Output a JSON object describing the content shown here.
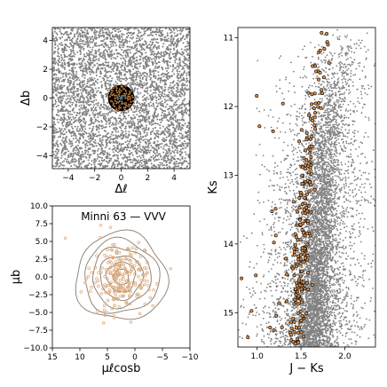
{
  "chart_data": [
    {
      "panel": "spatial",
      "type": "scatter",
      "xlabel": "Δℓ",
      "ylabel": "Δb",
      "xlim": [
        -5.2,
        5.2
      ],
      "ylim": [
        -4.9,
        4.9
      ],
      "xticks": [
        -4,
        -2,
        0,
        2,
        4
      ],
      "yticks": [
        -4,
        -2,
        0,
        2,
        4
      ],
      "xtick_labels": [
        "−4",
        "−2",
        "0",
        "2",
        "4"
      ],
      "ytick_labels": [
        "−4",
        "−2",
        "0",
        "2",
        "4"
      ],
      "series": [
        {
          "role": "field",
          "color": "#808080",
          "distribution": "uniform"
        },
        {
          "role": "cluster_members",
          "color": "#d98d4a",
          "edge": "#000000",
          "center": [
            0.0,
            0.0
          ],
          "radius": 1.0
        },
        {
          "role": "center_marker",
          "color": "#1f77b4",
          "x": [
            0.0
          ],
          "y": [
            0.0
          ]
        }
      ]
    },
    {
      "panel": "proper_motion",
      "type": "scatter",
      "title": "Minni 63 — VVV",
      "xlabel": "μℓcosb",
      "ylabel": "μb",
      "xlim": [
        15,
        -10
      ],
      "ylim": [
        -10,
        10
      ],
      "xticks": [
        15,
        10,
        5,
        0,
        -5,
        -10
      ],
      "yticks": [
        -10,
        -7.5,
        -5,
        -2.5,
        0,
        2.5,
        5,
        7.5,
        10
      ],
      "xtick_labels": [
        "15",
        "10",
        "5",
        "0",
        "−5",
        "−10"
      ],
      "ytick_labels": [
        "−10.0",
        "−7.5",
        "−5.0",
        "−2.5",
        "0.0",
        "2.5",
        "5.0",
        "7.5",
        "10.0"
      ],
      "contours": {
        "color": "#8b7a6a",
        "center": [
          2.5,
          0.0
        ],
        "ellipses": [
          {
            "rx": 8.3,
            "ry": 6.2
          },
          {
            "rx": 6.8,
            "ry": 5.2
          },
          {
            "rx": 5.3,
            "ry": 4.2
          },
          {
            "rx": 3.9,
            "ry": 3.1
          },
          {
            "rx": 2.6,
            "ry": 2.1
          },
          {
            "rx": 1.4,
            "ry": 1.1
          }
        ]
      },
      "series": [
        {
          "role": "members",
          "color": "#d9a77a",
          "center": [
            2.5,
            0.0
          ],
          "spread": [
            2.8,
            2.5
          ]
        }
      ]
    },
    {
      "panel": "cmd",
      "type": "scatter",
      "xlabel": "J − Ks",
      "ylabel": "Ks",
      "xlim": [
        0.78,
        2.35
      ],
      "ylim": [
        15.5,
        10.85
      ],
      "xticks": [
        1.0,
        1.5,
        2.0
      ],
      "yticks": [
        11,
        12,
        13,
        14,
        15
      ],
      "xtick_labels": [
        "1.0",
        "1.5",
        "2.0"
      ],
      "ytick_labels": [
        "11",
        "12",
        "13",
        "14",
        "15"
      ],
      "series": [
        {
          "role": "field",
          "color": "#808080"
        },
        {
          "role": "cluster_members",
          "color": "#d98d4a",
          "edge": "#000000"
        }
      ],
      "sequence_ridge": [
        {
          "ks": 10.9,
          "color": 1.83
        },
        {
          "ks": 11.5,
          "color": 1.74
        },
        {
          "ks": 12.0,
          "color": 1.67
        },
        {
          "ks": 12.5,
          "color": 1.62
        },
        {
          "ks": 13.0,
          "color": 1.58
        },
        {
          "ks": 13.5,
          "color": 1.55
        },
        {
          "ks": 14.0,
          "color": 1.52
        },
        {
          "ks": 14.5,
          "color": 1.5
        },
        {
          "ks": 15.0,
          "color": 1.48
        },
        {
          "ks": 15.5,
          "color": 1.46
        }
      ]
    }
  ]
}
